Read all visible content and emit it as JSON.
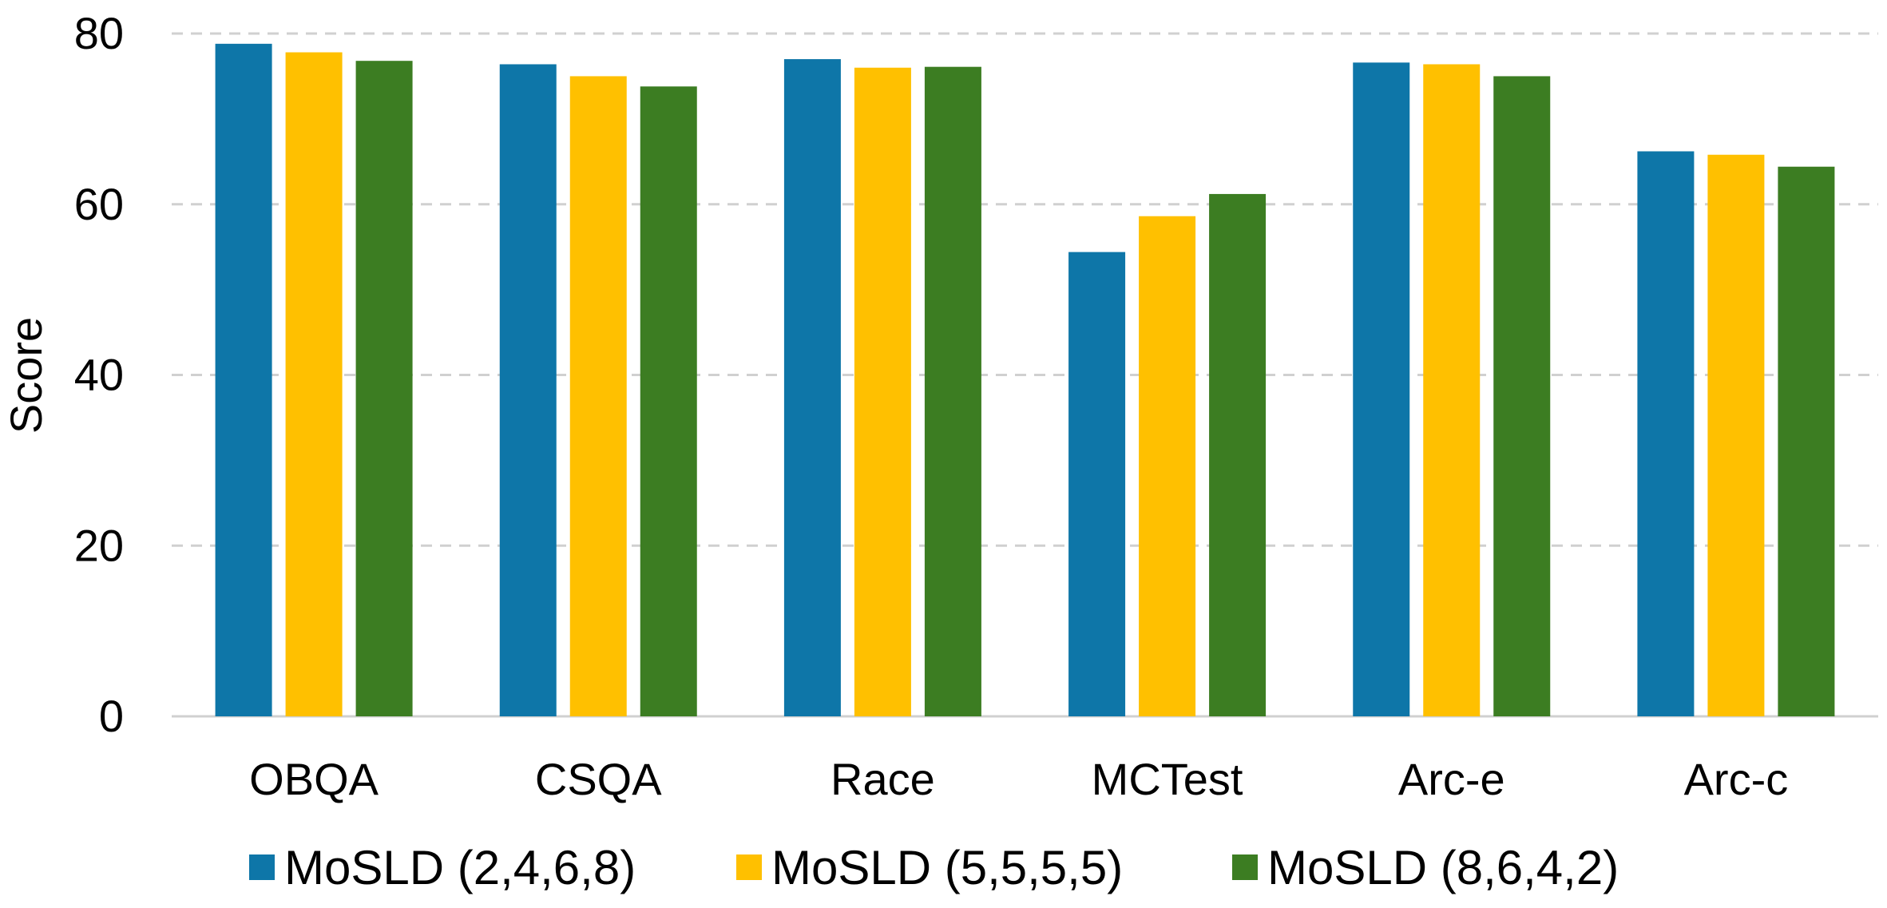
{
  "chart_data": {
    "type": "bar",
    "title": "",
    "xlabel": "",
    "ylabel": "Score",
    "ylim": [
      0,
      80
    ],
    "yticks": [
      0,
      20,
      40,
      60,
      80
    ],
    "grid": true,
    "legend_position": "bottom",
    "categories": [
      "OBQA",
      "CSQA",
      "Race",
      "MCTest",
      "Arc-e",
      "Arc-c"
    ],
    "series": [
      {
        "name": "MoSLD (2,4,6,8)",
        "color": "#0E76A8",
        "values": [
          78.8,
          76.4,
          77.0,
          54.4,
          76.6,
          66.2
        ]
      },
      {
        "name": "MoSLD (5,5,5,5)",
        "color": "#FFC000",
        "values": [
          77.8,
          75.0,
          76.0,
          58.6,
          76.4,
          65.8
        ]
      },
      {
        "name": "MoSLD (8,6,4,2)",
        "color": "#3C7D22",
        "values": [
          76.8,
          73.8,
          76.1,
          61.2,
          75.0,
          64.4
        ]
      }
    ]
  }
}
